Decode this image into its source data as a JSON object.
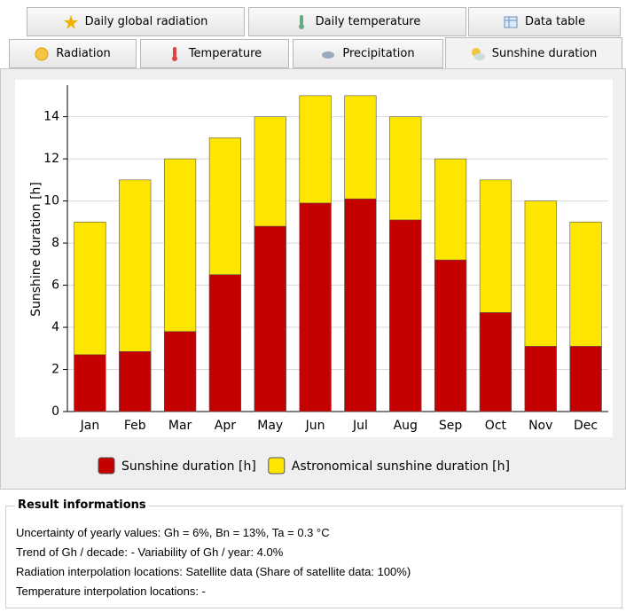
{
  "tabs_row1": [
    "Daily global radiation",
    "Daily temperature",
    "Data table"
  ],
  "tabs_row2": [
    "Radiation",
    "Temperature",
    "Precipitation",
    "Sunshine duration"
  ],
  "chart_data": {
    "type": "bar",
    "y_label": "Sunshine duration [h]",
    "categories": [
      "Jan",
      "Feb",
      "Mar",
      "Apr",
      "May",
      "Jun",
      "Jul",
      "Aug",
      "Sep",
      "Oct",
      "Nov",
      "Dec"
    ],
    "series": [
      {
        "name": "Sunshine duration [h]",
        "color": "#c40000",
        "values": [
          2.7,
          2.85,
          3.8,
          6.5,
          8.8,
          9.9,
          10.1,
          9.1,
          7.2,
          4.7,
          3.1,
          3.1
        ]
      },
      {
        "name": "Astronomical sunshine duration [h]",
        "color": "#ffe600",
        "values": [
          9,
          11,
          12,
          13,
          14,
          15,
          15,
          14,
          12,
          11,
          10,
          9
        ]
      }
    ],
    "ylim": [
      0,
      15.5
    ],
    "yticks": [
      0,
      2,
      4,
      6,
      8,
      10,
      12,
      14
    ],
    "grid": true
  },
  "result": {
    "title": "Result informations",
    "lines": [
      "Uncertainty of yearly values: Gh = 6%, Bn = 13%, Ta = 0.3 °C",
      "Trend of Gh / decade: -   Variability of Gh / year: 4.0%",
      "Radiation interpolation locations: Satellite data  (Share of satellite data: 100%)",
      "Temperature interpolation locations: -"
    ]
  }
}
